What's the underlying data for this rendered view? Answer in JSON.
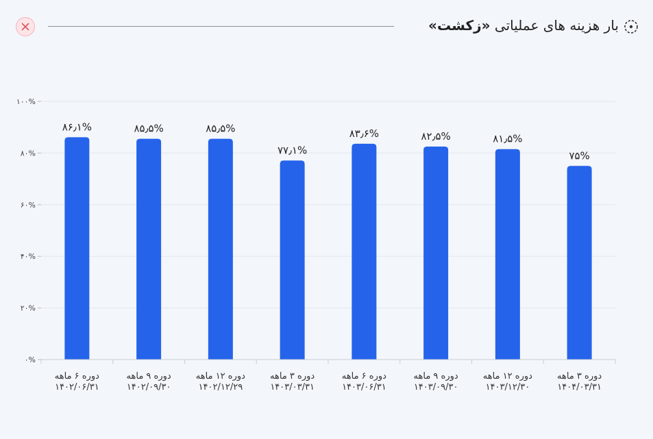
{
  "header": {
    "title_prefix": "بار هزینه های عملیاتی ",
    "title_bold": "«زکشت»"
  },
  "colors": {
    "bar": "#2563eb",
    "grid": "#e3e6eb",
    "close": "#e0525f"
  },
  "chart_data": {
    "type": "bar",
    "categories": [
      [
        "دوره ۶ ماهه",
        "۱۴۰۲/۰۶/۳۱"
      ],
      [
        "دوره ۹ ماهه",
        "۱۴۰۲/۰۹/۳۰"
      ],
      [
        "دوره ۱۲ ماهه",
        "۱۴۰۲/۱۲/۲۹"
      ],
      [
        "دوره ۳ ماهه",
        "۱۴۰۳/۰۳/۳۱"
      ],
      [
        "دوره ۶ ماهه",
        "۱۴۰۳/۰۶/۳۱"
      ],
      [
        "دوره ۹ ماهه",
        "۱۴۰۳/۰۹/۳۰"
      ],
      [
        "دوره ۱۲ ماهه",
        "۱۴۰۳/۱۲/۳۰"
      ],
      [
        "دوره ۳ ماهه",
        "۱۴۰۴/۰۳/۳۱"
      ]
    ],
    "values": [
      86.1,
      85.5,
      85.5,
      77.1,
      83.6,
      82.5,
      81.5,
      75
    ],
    "data_labels": [
      "۸۶٫۱%",
      "۸۵٫۵%",
      "۸۵٫۵%",
      "۷۷٫۱%",
      "۸۳٫۶%",
      "۸۲٫۵%",
      "۸۱٫۵%",
      "۷۵%"
    ],
    "yticks": [
      0,
      20,
      40,
      60,
      80,
      100
    ],
    "ytick_labels": [
      "۰%",
      "۲۰%",
      "۴۰%",
      "۶۰%",
      "۸۰%",
      "۱۰۰%"
    ],
    "ylim": [
      0,
      100
    ],
    "grid": true
  }
}
